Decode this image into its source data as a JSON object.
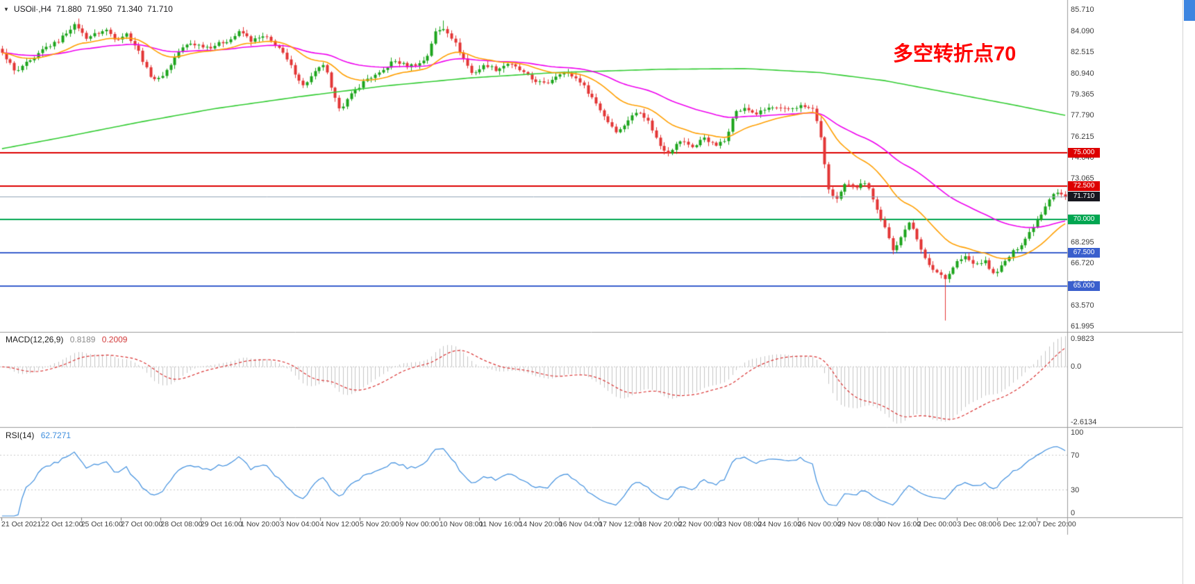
{
  "header": {
    "collapse_icon": "▼",
    "symbol": "USOil·,H4",
    "open": "71.880",
    "high": "71.950",
    "low": "71.340",
    "close": "71.710"
  },
  "annotation": {
    "text": "多空转折点70",
    "color": "#FF0000"
  },
  "ui": {
    "scrollbar_thumb_color": "#3D85E0"
  },
  "chart_data": {
    "type": "candlestick",
    "symbol": "USOil",
    "timeframe": "H4",
    "current_ohlc": {
      "open": 71.88,
      "high": 71.95,
      "low": 71.34,
      "close": 71.71
    },
    "y_range": [
      61.58,
      86.44
    ],
    "price_axis_ticks": [
      "85.710",
      "84.090",
      "82.515",
      "80.940",
      "79.365",
      "77.790",
      "76.215",
      "74.640",
      "73.065",
      "71.490",
      "69.915",
      "68.295",
      "66.720",
      "65.145",
      "63.570",
      "61.995"
    ],
    "time_axis_ticks": [
      "21 Oct 2021",
      "22 Oct 12:00",
      "25 Oct 16:00",
      "27 Oct 00:00",
      "28 Oct 08:00",
      "29 Oct 16:00",
      "1 Nov 20:00",
      "3 Nov 04:00",
      "4 Nov 12:00",
      "5 Nov 20:00",
      "9 Nov 00:00",
      "10 Nov 08:00",
      "11 Nov 16:00",
      "14 Nov 20:00",
      "16 Nov 04:00",
      "17 Nov 12:00",
      "18 Nov 20:00",
      "22 Nov 00:00",
      "23 Nov 08:00",
      "24 Nov 16:00",
      "26 Nov 00:00",
      "29 Nov 08:00",
      "30 Nov 16:00",
      "2 Dec 00:00",
      "3 Dec 08:00",
      "6 Dec 12:00",
      "7 Dec 20:00"
    ],
    "levels": [
      {
        "label": "75.000",
        "price": 75.0,
        "color": "#DD0000"
      },
      {
        "label": "72.500",
        "price": 72.5,
        "color": "#DD0000"
      },
      {
        "label": "70.000",
        "price": 70.0,
        "color": "#00A651"
      },
      {
        "label": "67.500",
        "price": 67.5,
        "color": "#3A5FCD"
      },
      {
        "label": "65.000",
        "price": 65.0,
        "color": "#3A5FCD"
      }
    ],
    "current_price": {
      "label": "71.710",
      "price": 71.71,
      "line_color": "#91A3B6",
      "badge_bg": "#17171F"
    },
    "candles": {
      "count": 266,
      "noise": 0.26,
      "up_color": "#1CA41C",
      "down_color": "#E33535",
      "path": [
        [
          0,
          82.4
        ],
        [
          0.005,
          82.0
        ],
        [
          0.013,
          80.9
        ],
        [
          0.02,
          81.6
        ],
        [
          0.029,
          81.9
        ],
        [
          0.039,
          82.8
        ],
        [
          0.052,
          83.3
        ],
        [
          0.065,
          84.4
        ],
        [
          0.07,
          84.6
        ],
        [
          0.078,
          83.6
        ],
        [
          0.088,
          83.9
        ],
        [
          0.098,
          84.2
        ],
        [
          0.107,
          83.5
        ],
        [
          0.117,
          83.9
        ],
        [
          0.127,
          82.8
        ],
        [
          0.138,
          80.9
        ],
        [
          0.146,
          80.4
        ],
        [
          0.156,
          81.3
        ],
        [
          0.166,
          82.6
        ],
        [
          0.176,
          83.2
        ],
        [
          0.195,
          82.9
        ],
        [
          0.215,
          83.5
        ],
        [
          0.224,
          84.1
        ],
        [
          0.234,
          83.4
        ],
        [
          0.247,
          83.7
        ],
        [
          0.26,
          82.9
        ],
        [
          0.273,
          81.3
        ],
        [
          0.283,
          80.0
        ],
        [
          0.293,
          80.9
        ],
        [
          0.303,
          81.7
        ],
        [
          0.311,
          79.3
        ],
        [
          0.318,
          78.3
        ],
        [
          0.329,
          79.4
        ],
        [
          0.342,
          80.5
        ],
        [
          0.355,
          80.9
        ],
        [
          0.368,
          81.9
        ],
        [
          0.381,
          81.5
        ],
        [
          0.394,
          81.7
        ],
        [
          0.4,
          82.3
        ],
        [
          0.407,
          84.0
        ],
        [
          0.416,
          84.35
        ],
        [
          0.424,
          83.5
        ],
        [
          0.433,
          82.2
        ],
        [
          0.442,
          80.9
        ],
        [
          0.455,
          81.6
        ],
        [
          0.465,
          81.2
        ],
        [
          0.475,
          81.7
        ],
        [
          0.485,
          81.3
        ],
        [
          0.498,
          80.5
        ],
        [
          0.511,
          80.1
        ],
        [
          0.524,
          81.0
        ],
        [
          0.533,
          80.9
        ],
        [
          0.543,
          80.4
        ],
        [
          0.556,
          79.0
        ],
        [
          0.569,
          77.4
        ],
        [
          0.579,
          76.5
        ],
        [
          0.589,
          77.5
        ],
        [
          0.599,
          78.2
        ],
        [
          0.608,
          77.3
        ],
        [
          0.618,
          75.6
        ],
        [
          0.626,
          75.0
        ],
        [
          0.638,
          75.9
        ],
        [
          0.651,
          75.4
        ],
        [
          0.66,
          76.2
        ],
        [
          0.67,
          75.5
        ],
        [
          0.68,
          75.9
        ],
        [
          0.688,
          78.0
        ],
        [
          0.699,
          78.3
        ],
        [
          0.709,
          77.9
        ],
        [
          0.722,
          78.4
        ],
        [
          0.735,
          78.2
        ],
        [
          0.751,
          78.5
        ],
        [
          0.764,
          78.2
        ],
        [
          0.771,
          75.6
        ],
        [
          0.777,
          72.3
        ],
        [
          0.784,
          71.3
        ],
        [
          0.794,
          72.8
        ],
        [
          0.803,
          72.4
        ],
        [
          0.813,
          72.9
        ],
        [
          0.821,
          71.0
        ],
        [
          0.829,
          69.6
        ],
        [
          0.838,
          67.6
        ],
        [
          0.846,
          68.9
        ],
        [
          0.854,
          69.8
        ],
        [
          0.862,
          68.3
        ],
        [
          0.87,
          66.6
        ],
        [
          0.88,
          66.0
        ],
        [
          0.888,
          65.6
        ],
        [
          0.897,
          66.8
        ],
        [
          0.906,
          67.2
        ],
        [
          0.914,
          66.6
        ],
        [
          0.924,
          66.9
        ],
        [
          0.932,
          65.9
        ],
        [
          0.94,
          66.5
        ],
        [
          0.95,
          67.5
        ],
        [
          0.96,
          68.3
        ],
        [
          0.969,
          69.4
        ],
        [
          0.977,
          70.4
        ],
        [
          0.984,
          71.5
        ],
        [
          0.99,
          72.1
        ],
        [
          0.995,
          71.9
        ],
        [
          1,
          71.71
        ]
      ],
      "spikes": [
        {
          "t": 0.888,
          "low": 62.43
        },
        {
          "t": 0.416,
          "high": 84.9
        },
        {
          "t": 0.07,
          "high": 85.05
        }
      ]
    },
    "moving_averages": [
      {
        "name": "ema-fast",
        "period": 21,
        "color": "#FF9F00"
      },
      {
        "name": "ema-mid",
        "period": 55,
        "color": "#EE00EE"
      },
      {
        "name": "ma-slow",
        "color": "#33CC33",
        "path": [
          [
            0,
            75.3
          ],
          [
            0.06,
            76.2
          ],
          [
            0.13,
            77.3
          ],
          [
            0.2,
            78.3
          ],
          [
            0.28,
            79.2
          ],
          [
            0.36,
            80.0
          ],
          [
            0.44,
            80.6
          ],
          [
            0.52,
            81.0
          ],
          [
            0.62,
            81.25
          ],
          [
            0.7,
            81.3
          ],
          [
            0.77,
            81.0
          ],
          [
            0.83,
            80.4
          ],
          [
            0.89,
            79.5
          ],
          [
            0.95,
            78.6
          ],
          [
            1,
            77.8
          ]
        ]
      }
    ],
    "indicators": {
      "macd": {
        "label": "MACD(12,26,9)",
        "fast": 12,
        "slow": 26,
        "signal": 9,
        "main_value": "0.8189",
        "signal_value": "0.2009",
        "scale_ticks": [
          "0.9823",
          "0.0",
          "-2.6134"
        ],
        "histogram_color": "#C4C4C4",
        "signal_color": "#D93030"
      },
      "rsi": {
        "label": "RSI(14)",
        "period": 14,
        "value": "62.7271",
        "scale_ticks": [
          "100",
          "70",
          "30",
          "0"
        ],
        "guide_levels": [
          70,
          30
        ],
        "line_color": "#3E8EDE"
      }
    }
  }
}
